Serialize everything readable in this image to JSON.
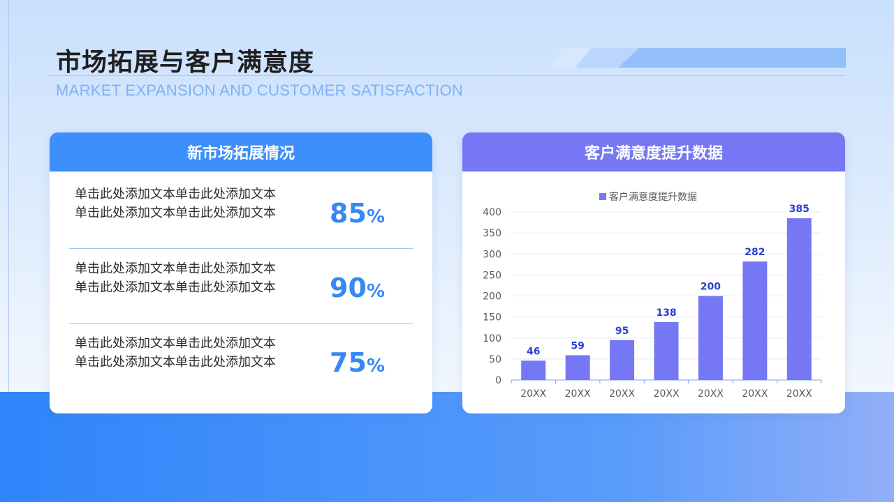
{
  "page": {
    "title": "市场拓展与客户满意度",
    "subtitle": "MARKET EXPANSION AND CUSTOMER SATISFACTION"
  },
  "left_card": {
    "header": "新市场拓展情况",
    "rows": [
      {
        "line1": "单击此处添加文本单击此处添加文本",
        "line2": "单击此处添加文本单击此处添加文本",
        "value": "85",
        "unit": "%"
      },
      {
        "line1": "单击此处添加文本单击此处添加文本",
        "line2": "单击此处添加文本单击此处添加文本",
        "value": "90",
        "unit": "%"
      },
      {
        "line1": "单击此处添加文本单击此处添加文本",
        "line2": "单击此处添加文本单击此处添加文本",
        "value": "75",
        "unit": "%"
      }
    ]
  },
  "right_card": {
    "header": "客户满意度提升数据"
  },
  "colors": {
    "accent_blue": "#3d8ffb",
    "accent_purple": "#7577f5",
    "value_blue": "#3688f4",
    "bar": "#7577f5",
    "data_label": "#2b3fcf"
  },
  "chart_data": {
    "type": "bar",
    "categories": [
      "20XX",
      "20XX",
      "20XX",
      "20XX",
      "20XX",
      "20XX",
      "20XX"
    ],
    "series": [
      {
        "name": "客户满意度提升数据",
        "values": [
          46,
          59,
          95,
          138,
          200,
          282,
          385
        ]
      }
    ],
    "ylim": [
      0,
      400
    ],
    "yticks": [
      0,
      50,
      100,
      150,
      200,
      250,
      300,
      350,
      400
    ],
    "grid": true,
    "legend": "top-center",
    "data_labels": true
  }
}
